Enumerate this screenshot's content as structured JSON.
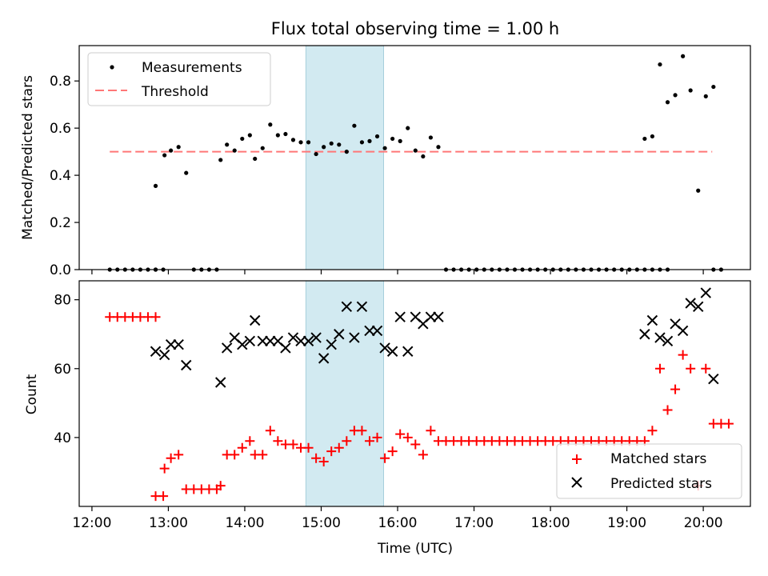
{
  "chart_data": [
    {
      "type": "scatter",
      "title": "Flux total observing time = 1.00 h",
      "xlabel": "",
      "ylabel": "Matched/Predicted stars",
      "xlim": [
        "11:50",
        "20:37"
      ],
      "ylim": [
        0,
        0.95
      ],
      "yticks": [
        0.0,
        0.2,
        0.4,
        0.6,
        0.8
      ],
      "ytick_labels": [
        "0.0",
        "0.2",
        "0.4",
        "0.6",
        "0.8"
      ],
      "highlight_span": [
        "14:48",
        "15:49"
      ],
      "legend": {
        "position": "top-left",
        "entries": [
          "Measurements",
          "Threshold"
        ]
      },
      "threshold": {
        "name": "Threshold",
        "value": 0.5,
        "x_range": [
          "12:14",
          "20:07"
        ],
        "color": "#ff7777",
        "style": "dashed"
      },
      "series": [
        {
          "name": "Measurements",
          "color": "#000000",
          "marker": "dot",
          "points": [
            [
              "12:14",
              0
            ],
            [
              "12:20",
              0
            ],
            [
              "12:26",
              0
            ],
            [
              "12:32",
              0
            ],
            [
              "12:38",
              0
            ],
            [
              "12:44",
              0
            ],
            [
              "12:50",
              0
            ],
            [
              "12:50",
              0
            ],
            [
              "12:50",
              0.355
            ],
            [
              "12:56",
              0
            ],
            [
              "12:57",
              0.485
            ],
            [
              "13:02",
              0.505
            ],
            [
              "13:08",
              0.52
            ],
            [
              "13:14",
              0.41
            ],
            [
              "13:20",
              0
            ],
            [
              "13:26",
              0
            ],
            [
              "13:32",
              0
            ],
            [
              "13:38",
              0
            ],
            [
              "13:41",
              0.465
            ],
            [
              "13:46",
              0.53
            ],
            [
              "13:52",
              0.505
            ],
            [
              "13:58",
              0.555
            ],
            [
              "14:04",
              0.57
            ],
            [
              "14:08",
              0.47
            ],
            [
              "14:14",
              0.515
            ],
            [
              "14:20",
              0.615
            ],
            [
              "14:26",
              0.57
            ],
            [
              "14:32",
              0.575
            ],
            [
              "14:38",
              0.55
            ],
            [
              "14:44",
              0.54
            ],
            [
              "14:50",
              0.54
            ],
            [
              "14:56",
              0.49
            ],
            [
              "15:02",
              0.52
            ],
            [
              "15:08",
              0.535
            ],
            [
              "15:14",
              0.53
            ],
            [
              "15:20",
              0.5
            ],
            [
              "15:26",
              0.61
            ],
            [
              "15:32",
              0.54
            ],
            [
              "15:38",
              0.545
            ],
            [
              "15:44",
              0.565
            ],
            [
              "15:50",
              0.515
            ],
            [
              "15:56",
              0.555
            ],
            [
              "16:02",
              0.545
            ],
            [
              "16:08",
              0.6
            ],
            [
              "16:14",
              0.505
            ],
            [
              "16:20",
              0.48
            ],
            [
              "16:26",
              0.56
            ],
            [
              "16:32",
              0.52
            ],
            [
              "16:38",
              0
            ],
            [
              "16:44",
              0
            ],
            [
              "16:50",
              0
            ],
            [
              "16:56",
              0
            ],
            [
              "17:02",
              0
            ],
            [
              "17:08",
              0
            ],
            [
              "17:14",
              0
            ],
            [
              "17:20",
              0
            ],
            [
              "17:26",
              0
            ],
            [
              "17:32",
              0
            ],
            [
              "17:38",
              0
            ],
            [
              "17:44",
              0
            ],
            [
              "17:50",
              0
            ],
            [
              "17:56",
              0
            ],
            [
              "18:02",
              0
            ],
            [
              "18:08",
              0
            ],
            [
              "18:14",
              0
            ],
            [
              "18:20",
              0
            ],
            [
              "18:26",
              0
            ],
            [
              "18:32",
              0
            ],
            [
              "18:38",
              0
            ],
            [
              "18:44",
              0
            ],
            [
              "18:50",
              0
            ],
            [
              "18:56",
              0
            ],
            [
              "19:02",
              0
            ],
            [
              "19:08",
              0
            ],
            [
              "19:14",
              0
            ],
            [
              "19:20",
              0
            ],
            [
              "19:26",
              0
            ],
            [
              "19:32",
              0
            ],
            [
              "19:14",
              0.555
            ],
            [
              "19:20",
              0.565
            ],
            [
              "19:26",
              0.87
            ],
            [
              "19:32",
              0.71
            ],
            [
              "19:38",
              0.74
            ],
            [
              "19:44",
              0.905
            ],
            [
              "19:50",
              0.76
            ],
            [
              "19:56",
              0.335
            ],
            [
              "20:02",
              0.735
            ],
            [
              "20:08",
              0.775
            ],
            [
              "20:08",
              0
            ],
            [
              "20:14",
              0
            ]
          ]
        }
      ]
    },
    {
      "type": "scatter",
      "xlabel": "Time (UTC)",
      "ylabel": "Count",
      "xlim": [
        "11:50",
        "20:37"
      ],
      "ylim": [
        20,
        85.5
      ],
      "yticks": [
        40,
        60,
        80
      ],
      "ytick_labels": [
        "40",
        "60",
        "80"
      ],
      "xticks": [
        "12:00",
        "13:00",
        "14:00",
        "15:00",
        "16:00",
        "17:00",
        "18:00",
        "19:00",
        "20:00"
      ],
      "xtick_labels": [
        "12:00",
        "13:00",
        "14:00",
        "15:00",
        "16:00",
        "17:00",
        "18:00",
        "19:00",
        "20:00"
      ],
      "highlight_span": [
        "14:48",
        "15:49"
      ],
      "legend": {
        "position": "bottom-right",
        "entries": [
          "Matched stars",
          "Predicted stars"
        ]
      },
      "series": [
        {
          "name": "Matched stars",
          "color": "#ff0000",
          "marker": "plus",
          "points": [
            [
              "12:14",
              75
            ],
            [
              "12:20",
              75
            ],
            [
              "12:26",
              75
            ],
            [
              "12:32",
              75
            ],
            [
              "12:38",
              75
            ],
            [
              "12:44",
              75
            ],
            [
              "12:50",
              75
            ],
            [
              "12:50",
              23
            ],
            [
              "12:56",
              23
            ],
            [
              "12:57",
              31
            ],
            [
              "13:02",
              34
            ],
            [
              "13:08",
              35
            ],
            [
              "13:14",
              25
            ],
            [
              "13:20",
              25
            ],
            [
              "13:26",
              25
            ],
            [
              "13:32",
              25
            ],
            [
              "13:38",
              25
            ],
            [
              "13:41",
              26
            ],
            [
              "13:46",
              35
            ],
            [
              "13:52",
              35
            ],
            [
              "13:58",
              37
            ],
            [
              "14:04",
              39
            ],
            [
              "14:08",
              35
            ],
            [
              "14:14",
              35
            ],
            [
              "14:20",
              42
            ],
            [
              "14:26",
              39
            ],
            [
              "14:32",
              38
            ],
            [
              "14:38",
              38
            ],
            [
              "14:44",
              37
            ],
            [
              "14:50",
              37
            ],
            [
              "14:56",
              34
            ],
            [
              "15:02",
              33
            ],
            [
              "15:08",
              36
            ],
            [
              "15:14",
              37
            ],
            [
              "15:20",
              39
            ],
            [
              "15:26",
              42
            ],
            [
              "15:32",
              42
            ],
            [
              "15:38",
              39
            ],
            [
              "15:44",
              40
            ],
            [
              "15:50",
              34
            ],
            [
              "15:56",
              36
            ],
            [
              "16:02",
              41
            ],
            [
              "16:08",
              40
            ],
            [
              "16:14",
              38
            ],
            [
              "16:20",
              35
            ],
            [
              "16:26",
              42
            ],
            [
              "16:32",
              39
            ],
            [
              "16:38",
              39
            ],
            [
              "16:44",
              39
            ],
            [
              "16:50",
              39
            ],
            [
              "16:56",
              39
            ],
            [
              "17:02",
              39
            ],
            [
              "17:08",
              39
            ],
            [
              "17:14",
              39
            ],
            [
              "17:20",
              39
            ],
            [
              "17:26",
              39
            ],
            [
              "17:32",
              39
            ],
            [
              "17:38",
              39
            ],
            [
              "17:44",
              39
            ],
            [
              "17:50",
              39
            ],
            [
              "17:56",
              39
            ],
            [
              "18:02",
              39
            ],
            [
              "18:08",
              39
            ],
            [
              "18:14",
              39
            ],
            [
              "18:20",
              39
            ],
            [
              "18:26",
              39
            ],
            [
              "18:32",
              39
            ],
            [
              "18:38",
              39
            ],
            [
              "18:44",
              39
            ],
            [
              "18:50",
              39
            ],
            [
              "18:56",
              39
            ],
            [
              "19:02",
              39
            ],
            [
              "19:08",
              39
            ],
            [
              "19:14",
              39
            ],
            [
              "19:20",
              42
            ],
            [
              "19:26",
              60
            ],
            [
              "19:32",
              48
            ],
            [
              "19:38",
              54
            ],
            [
              "19:44",
              64
            ],
            [
              "19:50",
              60
            ],
            [
              "19:56",
              26
            ],
            [
              "20:02",
              60
            ],
            [
              "20:08",
              44
            ],
            [
              "20:14",
              44
            ],
            [
              "20:20",
              44
            ]
          ]
        },
        {
          "name": "Predicted stars",
          "color": "#000000",
          "marker": "x",
          "points": [
            [
              "12:50",
              65
            ],
            [
              "12:57",
              64
            ],
            [
              "13:02",
              67
            ],
            [
              "13:08",
              67
            ],
            [
              "13:14",
              61
            ],
            [
              "13:41",
              56
            ],
            [
              "13:46",
              66
            ],
            [
              "13:52",
              69
            ],
            [
              "13:58",
              67
            ],
            [
              "14:04",
              68
            ],
            [
              "14:08",
              74
            ],
            [
              "14:14",
              68
            ],
            [
              "14:20",
              68
            ],
            [
              "14:26",
              68
            ],
            [
              "14:32",
              66
            ],
            [
              "14:38",
              69
            ],
            [
              "14:44",
              68
            ],
            [
              "14:50",
              68
            ],
            [
              "14:56",
              69
            ],
            [
              "15:02",
              63
            ],
            [
              "15:08",
              67
            ],
            [
              "15:14",
              70
            ],
            [
              "15:20",
              78
            ],
            [
              "15:26",
              69
            ],
            [
              "15:32",
              78
            ],
            [
              "15:38",
              71
            ],
            [
              "15:44",
              71
            ],
            [
              "15:50",
              66
            ],
            [
              "15:56",
              65
            ],
            [
              "16:02",
              75
            ],
            [
              "16:08",
              65
            ],
            [
              "16:14",
              75
            ],
            [
              "16:20",
              73
            ],
            [
              "16:26",
              75
            ],
            [
              "16:32",
              75
            ],
            [
              "19:14",
              70
            ],
            [
              "19:20",
              74
            ],
            [
              "19:26",
              69
            ],
            [
              "19:32",
              68
            ],
            [
              "19:38",
              73
            ],
            [
              "19:44",
              71
            ],
            [
              "19:50",
              79
            ],
            [
              "19:56",
              78
            ],
            [
              "20:02",
              82
            ],
            [
              "20:08",
              57
            ]
          ]
        }
      ]
    }
  ]
}
